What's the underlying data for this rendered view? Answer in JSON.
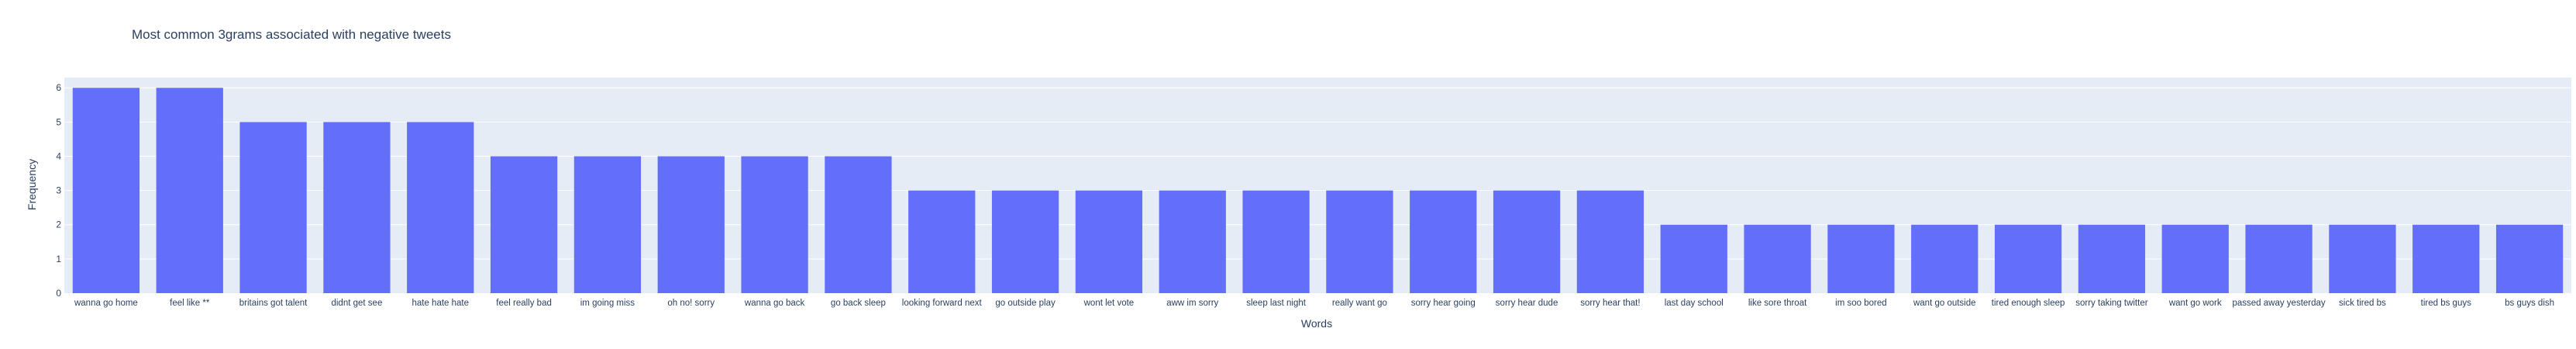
{
  "chart_data": {
    "type": "bar",
    "title": "Most common 3grams associated with negative tweets",
    "xlabel": "Words",
    "ylabel": "Frequency",
    "ylim": [
      0,
      6.3
    ],
    "yticks": [
      0,
      1,
      2,
      3,
      4,
      5,
      6
    ],
    "grid": true,
    "colors": {
      "bar": "#636efa",
      "plot_bg": "#e5ecf6",
      "grid": "#ffffff",
      "text": "#2a3f5f"
    },
    "categories": [
      "wanna go home",
      "feel like **",
      "britains got talent",
      "didnt get see",
      "hate hate hate",
      "feel really bad",
      "im going miss",
      "oh no! sorry",
      "wanna go back",
      "go back sleep",
      "looking forward next",
      "go outside play",
      "wont let vote",
      "aww im sorry",
      "sleep last night",
      "really want go",
      "sorry hear going",
      "sorry hear dude",
      "sorry hear that!",
      "last day school",
      "like sore throat",
      "im soo bored",
      "want go outside",
      "tired enough sleep",
      "sorry taking twitter",
      "want go work",
      "passed away yesterday",
      "sick tired bs",
      "tired bs guys",
      "bs guys dish"
    ],
    "values": [
      6,
      6,
      5,
      5,
      5,
      4,
      4,
      4,
      4,
      4,
      3,
      3,
      3,
      3,
      3,
      3,
      3,
      3,
      3,
      2,
      2,
      2,
      2,
      2,
      2,
      2,
      2,
      2,
      2,
      2
    ]
  }
}
